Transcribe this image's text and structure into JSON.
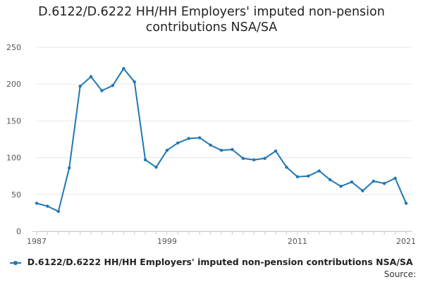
{
  "chart_data": {
    "type": "line",
    "title_line1": "D.6122/D.6222 HH/HH Employers' imputed non-pension",
    "title_line2": "contributions NSA/SA",
    "xlabel": "",
    "ylabel": "",
    "x": [
      1987,
      1988,
      1989,
      1990,
      1991,
      1992,
      1993,
      1994,
      1995,
      1996,
      1997,
      1998,
      1999,
      2000,
      2001,
      2002,
      2003,
      2004,
      2005,
      2006,
      2007,
      2008,
      2009,
      2010,
      2011,
      2012,
      2013,
      2014,
      2015,
      2016,
      2017,
      2018,
      2019,
      2020,
      2021
    ],
    "series": [
      {
        "name": "D.6122/D.6222 HH/HH Employers' imputed non-pension contributions NSA/SA",
        "color": "#1f77b4",
        "values": [
          38,
          34,
          27,
          86,
          197,
          210,
          191,
          198,
          221,
          203,
          97,
          87,
          110,
          120,
          126,
          127,
          117,
          110,
          111,
          99,
          97,
          99,
          109,
          87,
          74,
          75,
          82,
          70,
          61,
          67,
          55,
          68,
          65,
          72,
          38
        ]
      }
    ],
    "x_ticks": [
      "1987",
      "1999",
      "2011",
      "2021"
    ],
    "y_ticks": [
      "0",
      "50",
      "100",
      "150",
      "200",
      "250"
    ],
    "xlim": [
      1987,
      2021
    ],
    "ylim": [
      0,
      250
    ],
    "grid": "horizontal",
    "legend_position": "bottom"
  },
  "footer": {
    "source_label": "Source:"
  }
}
